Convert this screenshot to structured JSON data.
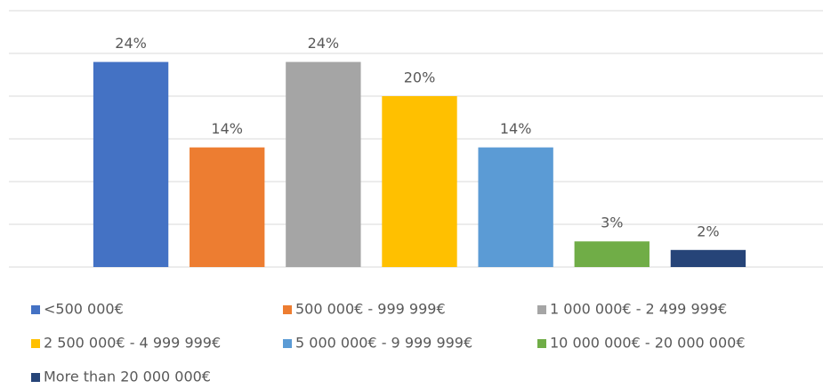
{
  "chart_data": {
    "type": "bar",
    "categories": [
      "<500 000€",
      "500 000€ - 999 999€",
      "1 000 000€ - 2 499 999€",
      "2 500 000€ - 4 999 999€",
      "5 000 000€ - 9 999 999€",
      "10 000 000€ - 20 000 000€",
      "More than 20 000 000€"
    ],
    "values": [
      24,
      14,
      24,
      20,
      14,
      3,
      2
    ],
    "value_labels": [
      "24%",
      "14%",
      "24%",
      "20%",
      "14%",
      "3%",
      "2%"
    ],
    "colors": [
      "#4472c4",
      "#ed7d31",
      "#a5a5a5",
      "#ffc000",
      "#5b9bd5",
      "#70ad47",
      "#264478"
    ],
    "ylim": [
      0,
      30
    ],
    "yticks": [
      0,
      5,
      10,
      15,
      20,
      25,
      30
    ],
    "grid": true,
    "legend": "bottom"
  }
}
